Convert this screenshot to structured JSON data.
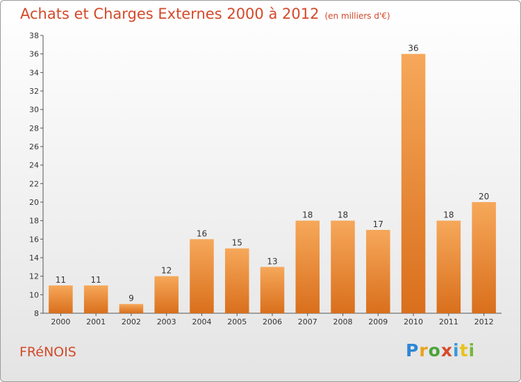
{
  "title": "Achats et Charges Externes 2000 à 2012",
  "subtitle": "(en milliers d'€)",
  "commune": "FRéNOIS",
  "logo": [
    "P",
    "r",
    "o",
    "x",
    "i",
    "t",
    "i"
  ],
  "colors": {
    "bar_light": "#f6a85a",
    "bar_dark": "#d96f1c",
    "title": "#d3492a"
  },
  "chart_data": {
    "type": "bar",
    "categories": [
      "2000",
      "2001",
      "2002",
      "2003",
      "2004",
      "2005",
      "2006",
      "2007",
      "2008",
      "2009",
      "2010",
      "2011",
      "2012"
    ],
    "values": [
      11,
      11,
      9,
      12,
      16,
      15,
      13,
      18,
      18,
      17,
      36,
      18,
      20
    ],
    "yticks": [
      "8",
      "10",
      "12",
      "14",
      "16",
      "18",
      "20",
      "22",
      "24",
      "26",
      "28",
      "30",
      "32",
      "34",
      "36",
      "38"
    ],
    "ylim": [
      8,
      38
    ],
    "grid": false,
    "xlabel": "",
    "ylabel": ""
  }
}
